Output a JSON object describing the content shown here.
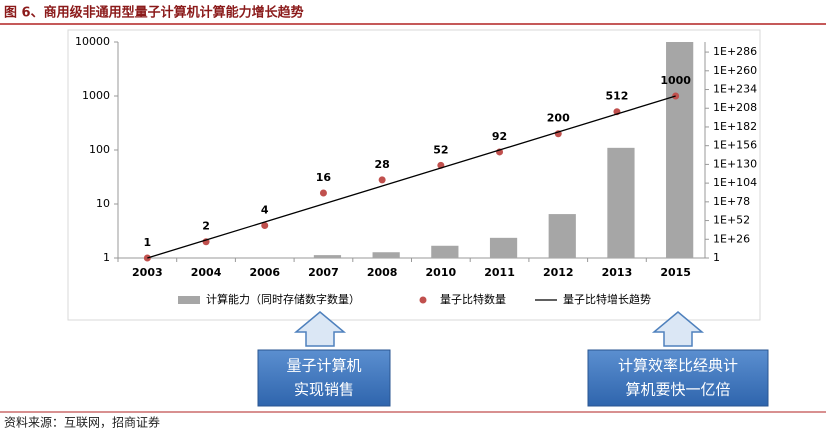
{
  "chart_data": {
    "type": "combo",
    "title": "图 6、商用级非通用型量子计算机计算能力增长趋势",
    "source": "资料来源：互联网，招商证券",
    "categories": [
      "2003",
      "2004",
      "2006",
      "2007",
      "2008",
      "2010",
      "2011",
      "2012",
      "2013",
      "2015"
    ],
    "series": [
      {
        "name": "计算能力（同时存储数字数量）",
        "type": "bar",
        "axis": "y2",
        "color": "#a6a6a6",
        "values": [
          null,
          null,
          null,
          10000.0,
          100000000.0,
          1e+17,
          1e+28,
          1e+61,
          1e+153,
          1e+300
        ]
      },
      {
        "name": "量子比特数量",
        "type": "scatter",
        "color": "#c0504d",
        "values": [
          1,
          2,
          4,
          16,
          28,
          52,
          92,
          200,
          512,
          1000
        ]
      },
      {
        "name": "量子比特增长趋势",
        "type": "line",
        "color": "#000000",
        "values": [
          1,
          2.15,
          4.64,
          10,
          21.5,
          46.4,
          100,
          215,
          464,
          1000
        ]
      }
    ],
    "ylim": [
      1,
      10000
    ],
    "yticks": [
      1,
      10,
      100,
      1000,
      10000
    ],
    "log_scale": true,
    "y2lim": [
      1,
      1e+300
    ],
    "y2log_scale": true,
    "y2ticks": [
      1,
      {
        "value": 1e+26,
        "label": "1E+26"
      },
      {
        "value": 1e+52,
        "label": "1E+52"
      },
      {
        "value": 1e+78,
        "label": "1E+78"
      },
      {
        "value": 1e+104,
        "label": "1E+104"
      },
      {
        "value": 1e+130,
        "label": "1E+130"
      },
      {
        "value": 1e+156,
        "label": "1E+156"
      },
      {
        "value": 1e+182,
        "label": "1E+182"
      },
      {
        "value": 1e+208,
        "label": "1E+208"
      },
      {
        "value": 1e+234,
        "label": "1E+234"
      },
      {
        "value": 1e+260,
        "label": "1E+260"
      },
      {
        "value": 1e+286,
        "label": "1E+286"
      }
    ],
    "annotations": [
      {
        "lines": [
          "量子计算机",
          "实现销售"
        ]
      },
      {
        "lines": [
          "计算效率比经典计",
          "算机要快一亿倍"
        ]
      }
    ]
  }
}
